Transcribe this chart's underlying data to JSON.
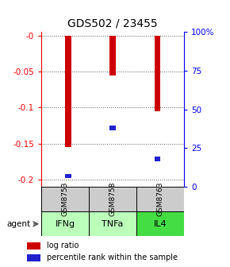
{
  "title": "GDS502 / 23455",
  "samples": [
    "GSM8753",
    "GSM8758",
    "GSM8763"
  ],
  "agents": [
    "IFNg",
    "TNFa",
    "IL4"
  ],
  "log_ratios": [
    -0.155,
    -0.055,
    -0.105
  ],
  "percentile_ranks": [
    0.07,
    0.38,
    0.18
  ],
  "ylim_left": [
    -0.21,
    0.005
  ],
  "yticks_left": [
    0.0,
    -0.05,
    -0.1,
    -0.15,
    -0.2
  ],
  "ytick_labels_left": [
    "-0",
    "-0.05",
    "-0.1",
    "-0.15",
    "-0.2"
  ],
  "yticks_right_pct": [
    100,
    75,
    50,
    25,
    0
  ],
  "ytick_labels_right": [
    "100%",
    "75",
    "50",
    "25",
    "0"
  ],
  "bar_color": "#cc0000",
  "rank_color": "#2222cc",
  "bar_width": 0.13,
  "sample_bg_color": "#cccccc",
  "agent_colors": [
    "#bbffbb",
    "#bbffbb",
    "#44dd44"
  ],
  "grid_color": "#555555",
  "title_fontsize": 10,
  "tick_fontsize": 7.5,
  "legend_fontsize": 7
}
